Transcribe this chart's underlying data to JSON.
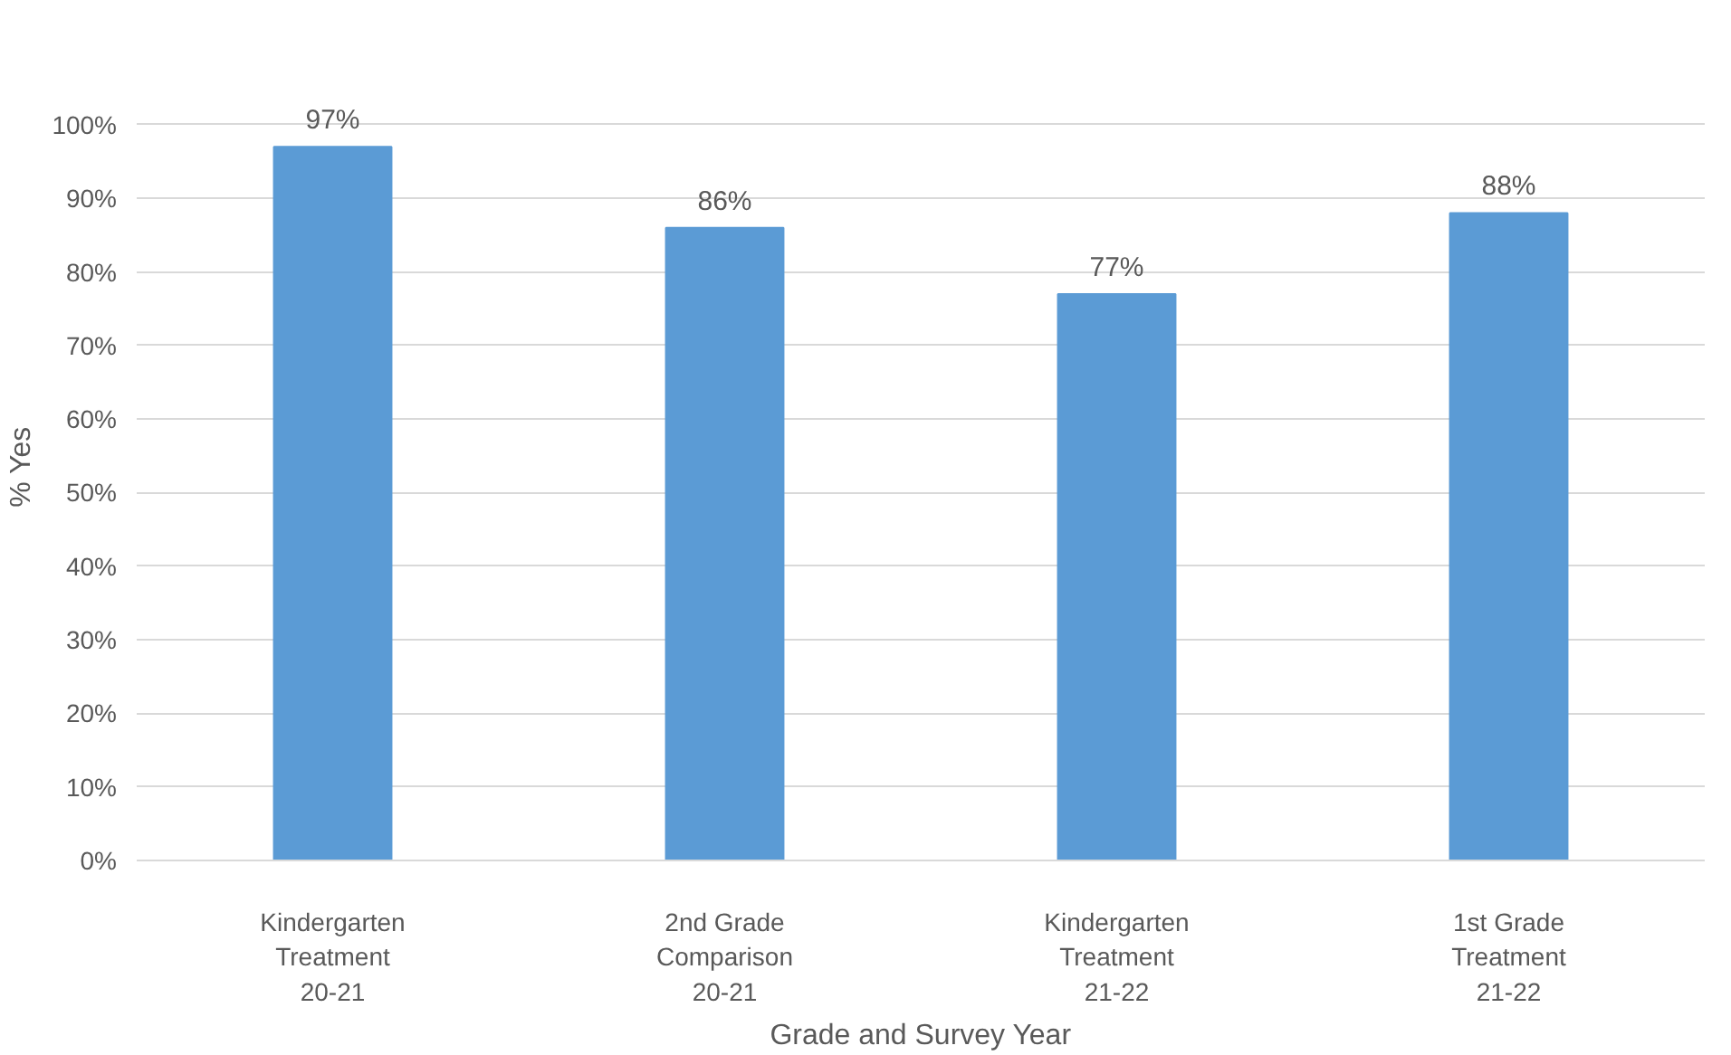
{
  "chart_data": {
    "type": "bar",
    "categories": [
      "Kindergarten\nTreatment\n20-21",
      "2nd Grade\nComparison\n20-21",
      "Kindergarten\nTreatment\n21-22",
      "1st Grade\nTreatment\n21-22"
    ],
    "values": [
      97,
      86,
      77,
      88
    ],
    "value_labels": [
      "97%",
      "86%",
      "77%",
      "88%"
    ],
    "color": "#5b9bd5",
    "xlabel": "Grade and Survey Year",
    "ylabel": "% Yes",
    "ylim": [
      0,
      100
    ],
    "yticks": [
      {
        "value": 0,
        "label": "0%"
      },
      {
        "value": 10,
        "label": "10%"
      },
      {
        "value": 20,
        "label": "20%"
      },
      {
        "value": 30,
        "label": "30%"
      },
      {
        "value": 40,
        "label": "40%"
      },
      {
        "value": 50,
        "label": "50%"
      },
      {
        "value": 60,
        "label": "60%"
      },
      {
        "value": 70,
        "label": "70%"
      },
      {
        "value": 80,
        "label": "80%"
      },
      {
        "value": 90,
        "label": "90%"
      },
      {
        "value": 100,
        "label": "100%"
      }
    ],
    "grid": "y"
  }
}
